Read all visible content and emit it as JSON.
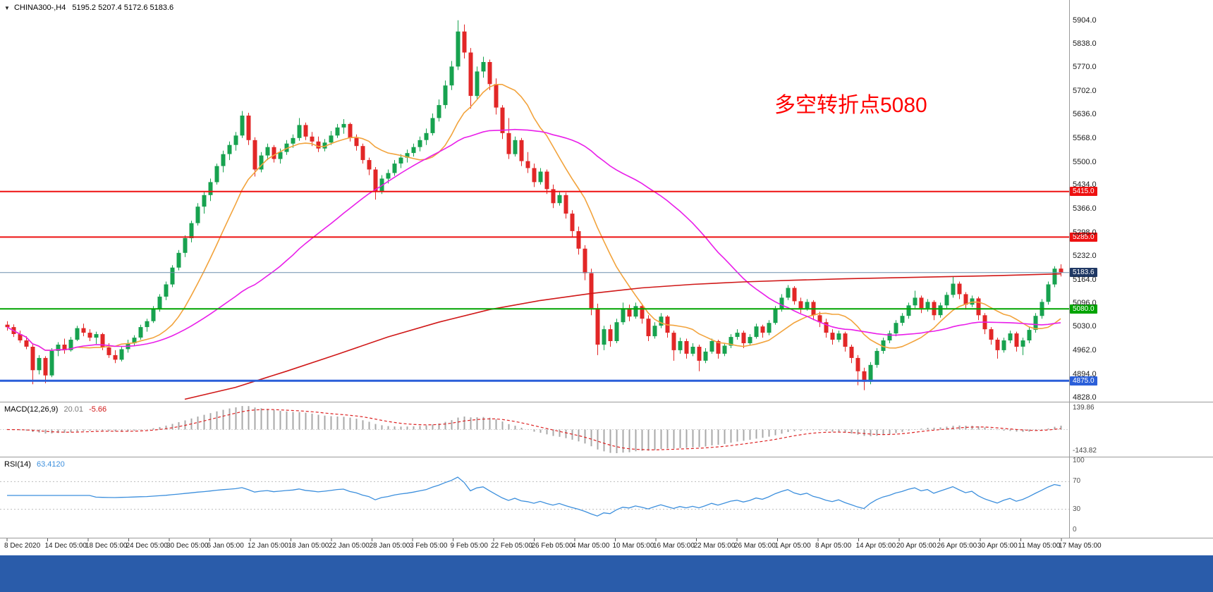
{
  "header": {
    "symbol": "CHINA300-,H4",
    "ohlc": "5195.2 5207.4 5172.6 5183.6"
  },
  "annotation": {
    "text": "多空转折点5080",
    "color": "#ff0000"
  },
  "taskbar": {
    "color": "#2a5caa"
  },
  "chart_data": {
    "type": "candlestick",
    "symbol": "CHINA300-",
    "timeframe": "H4",
    "current_bar": {
      "open": 5195.2,
      "high": 5207.4,
      "low": 5172.6,
      "close": 5183.6
    },
    "candle_up_color": "#17a24f",
    "candle_down_color": "#e22727",
    "price_axis": {
      "min": 4815,
      "max": 5962,
      "ticks": [
        5904,
        5838,
        5770,
        5702,
        5636,
        5568,
        5500,
        5434,
        5366,
        5298,
        5232,
        5164,
        5096,
        5030,
        4962,
        4894,
        4828
      ]
    },
    "x_labels": [
      "8 Dec 2020",
      "14 Dec 05:00",
      "18 Dec 05:00",
      "24 Dec 05:00",
      "30 Dec 05:00",
      "6 Jan 05:00",
      "12 Jan 05:00",
      "18 Jan 05:00",
      "22 Jan 05:00",
      "28 Jan 05:00",
      "3 Feb 05:00",
      "9 Feb 05:00",
      "22 Feb 05:00",
      "26 Feb 05:00",
      "4 Mar 05:00",
      "10 Mar 05:00",
      "16 Mar 05:00",
      "22 Mar 05:00",
      "26 Mar 05:00",
      "1 Apr 05:00",
      "8 Apr 05:00",
      "14 Apr 05:00",
      "20 Apr 05:00",
      "26 Apr 05:00",
      "30 Apr 05:00",
      "11 May 05:00",
      "17 May 05:00"
    ],
    "hlines": [
      {
        "price": 5415.0,
        "label": "5415.0",
        "color": "#ee1111",
        "width": 2
      },
      {
        "price": 5285.0,
        "label": "5285.0",
        "color": "#ee1111",
        "width": 2
      },
      {
        "price": 5080.0,
        "label": "5080.0",
        "color": "#00a400",
        "width": 2
      },
      {
        "price": 4875.0,
        "label": "4875.0",
        "color": "#2b5fd9",
        "width": 3
      }
    ],
    "current_price_line": {
      "price": 5183.6,
      "label": "5183.6",
      "color": "#6f8fae",
      "tag_bg": "#1f3864"
    },
    "moving_averages": [
      {
        "name": "ma-fast",
        "type": "sma",
        "period": 12,
        "color": "#f2a33c"
      },
      {
        "name": "ma-mid",
        "type": "sma",
        "period": 40,
        "color": "#e91ee9"
      },
      {
        "name": "ma-slow",
        "type": "manual",
        "color": "#d01818",
        "points": [
          [
            28,
            4822
          ],
          [
            36,
            4856
          ],
          [
            44,
            4902
          ],
          [
            52,
            4950
          ],
          [
            60,
            5000
          ],
          [
            68,
            5042
          ],
          [
            76,
            5078
          ],
          [
            84,
            5104
          ],
          [
            92,
            5124
          ],
          [
            100,
            5140
          ],
          [
            108,
            5150
          ],
          [
            116,
            5157
          ],
          [
            124,
            5162
          ],
          [
            132,
            5166
          ],
          [
            140,
            5169
          ],
          [
            148,
            5172
          ],
          [
            156,
            5175
          ],
          [
            162,
            5178
          ],
          [
            166,
            5180
          ]
        ]
      }
    ],
    "macd": {
      "label": "MACD(12,26,9)",
      "value_main": "20.01",
      "value_signal": "-5.66",
      "fast": 12,
      "slow": 26,
      "signal": 9,
      "axis_max": "139.86",
      "axis_min": "-143.82",
      "hist_color": "#a8a8a8",
      "signal_color": "#dd2222"
    },
    "rsi": {
      "label": "RSI(14)",
      "value": "63.4120",
      "period": 14,
      "levels": [
        100,
        70,
        30,
        0
      ],
      "color": "#3c8fdd"
    },
    "candles": [
      [
        5035,
        5045,
        5018,
        5028
      ],
      [
        5028,
        5036,
        5000,
        5008
      ],
      [
        5008,
        5018,
        4983,
        4990
      ],
      [
        4990,
        5002,
        4965,
        4972
      ],
      [
        4972,
        4980,
        4865,
        4905
      ],
      [
        4905,
        4948,
        4893,
        4940
      ],
      [
        4940,
        4945,
        4868,
        4890
      ],
      [
        4890,
        4968,
        4885,
        4960
      ],
      [
        4960,
        4985,
        4945,
        4978
      ],
      [
        4978,
        4995,
        4952,
        4962
      ],
      [
        4962,
        5000,
        4958,
        4992
      ],
      [
        4992,
        5032,
        4988,
        5025
      ],
      [
        5025,
        5038,
        5002,
        5012
      ],
      [
        5012,
        5022,
        4988,
        4998
      ],
      [
        4998,
        5015,
        4980,
        5008
      ],
      [
        5008,
        5012,
        4962,
        4970
      ],
      [
        4970,
        4982,
        4940,
        4948
      ],
      [
        4948,
        4962,
        4925,
        4935
      ],
      [
        4935,
        4972,
        4930,
        4965
      ],
      [
        4965,
        4992,
        4955,
        4982
      ],
      [
        4982,
        5005,
        4975,
        4998
      ],
      [
        4998,
        5035,
        4992,
        5028
      ],
      [
        5028,
        5052,
        5015,
        5045
      ],
      [
        5045,
        5088,
        5040,
        5080
      ],
      [
        5080,
        5122,
        5072,
        5115
      ],
      [
        5115,
        5158,
        5105,
        5150
      ],
      [
        5150,
        5205,
        5142,
        5198
      ],
      [
        5198,
        5248,
        5190,
        5240
      ],
      [
        5240,
        5290,
        5228,
        5282
      ],
      [
        5282,
        5332,
        5270,
        5325
      ],
      [
        5325,
        5382,
        5318,
        5372
      ],
      [
        5372,
        5415,
        5352,
        5405
      ],
      [
        5405,
        5452,
        5388,
        5442
      ],
      [
        5442,
        5495,
        5435,
        5488
      ],
      [
        5488,
        5532,
        5470,
        5522
      ],
      [
        5522,
        5558,
        5505,
        5548
      ],
      [
        5548,
        5585,
        5532,
        5575
      ],
      [
        5575,
        5645,
        5568,
        5632
      ],
      [
        5632,
        5640,
        5548,
        5562
      ],
      [
        5562,
        5570,
        5458,
        5478
      ],
      [
        5478,
        5528,
        5470,
        5518
      ],
      [
        5518,
        5552,
        5505,
        5542
      ],
      [
        5542,
        5548,
        5498,
        5508
      ],
      [
        5508,
        5538,
        5495,
        5528
      ],
      [
        5528,
        5562,
        5520,
        5552
      ],
      [
        5552,
        5578,
        5540,
        5568
      ],
      [
        5568,
        5625,
        5560,
        5605
      ],
      [
        5605,
        5612,
        5562,
        5572
      ],
      [
        5572,
        5585,
        5545,
        5558
      ],
      [
        5558,
        5572,
        5528,
        5538
      ],
      [
        5538,
        5565,
        5530,
        5555
      ],
      [
        5555,
        5588,
        5548,
        5575
      ],
      [
        5575,
        5608,
        5568,
        5598
      ],
      [
        5598,
        5622,
        5580,
        5608
      ],
      [
        5608,
        5612,
        5558,
        5568
      ],
      [
        5568,
        5578,
        5532,
        5545
      ],
      [
        5545,
        5552,
        5495,
        5505
      ],
      [
        5505,
        5512,
        5462,
        5478
      ],
      [
        5478,
        5485,
        5392,
        5415
      ],
      [
        5415,
        5462,
        5408,
        5452
      ],
      [
        5452,
        5478,
        5438,
        5468
      ],
      [
        5468,
        5505,
        5460,
        5495
      ],
      [
        5495,
        5522,
        5482,
        5512
      ],
      [
        5512,
        5535,
        5498,
        5525
      ],
      [
        5525,
        5552,
        5515,
        5542
      ],
      [
        5542,
        5572,
        5530,
        5562
      ],
      [
        5562,
        5595,
        5548,
        5582
      ],
      [
        5582,
        5638,
        5575,
        5625
      ],
      [
        5625,
        5678,
        5615,
        5662
      ],
      [
        5662,
        5732,
        5652,
        5718
      ],
      [
        5718,
        5788,
        5705,
        5772
      ],
      [
        5772,
        5904,
        5762,
        5872
      ],
      [
        5872,
        5892,
        5795,
        5812
      ],
      [
        5812,
        5825,
        5652,
        5688
      ],
      [
        5688,
        5772,
        5680,
        5758
      ],
      [
        5758,
        5800,
        5740,
        5785
      ],
      [
        5785,
        5792,
        5705,
        5722
      ],
      [
        5722,
        5738,
        5635,
        5655
      ],
      [
        5655,
        5662,
        5565,
        5582
      ],
      [
        5582,
        5625,
        5508,
        5522
      ],
      [
        5522,
        5572,
        5515,
        5562
      ],
      [
        5562,
        5568,
        5488,
        5502
      ],
      [
        5502,
        5528,
        5468,
        5482
      ],
      [
        5482,
        5495,
        5428,
        5442
      ],
      [
        5442,
        5482,
        5435,
        5472
      ],
      [
        5472,
        5478,
        5408,
        5422
      ],
      [
        5422,
        5435,
        5368,
        5382
      ],
      [
        5382,
        5415,
        5375,
        5405
      ],
      [
        5405,
        5412,
        5338,
        5352
      ],
      [
        5352,
        5362,
        5285,
        5302
      ],
      [
        5302,
        5315,
        5235,
        5252
      ],
      [
        5252,
        5262,
        5162,
        5182
      ],
      [
        5182,
        5195,
        5062,
        5082
      ],
      [
        5082,
        5095,
        4948,
        4978
      ],
      [
        4978,
        5032,
        4962,
        5022
      ],
      [
        5022,
        5035,
        4972,
        4988
      ],
      [
        4988,
        5052,
        4982,
        5042
      ],
      [
        5042,
        5098,
        5035,
        5082
      ],
      [
        5082,
        5092,
        5045,
        5058
      ],
      [
        5058,
        5098,
        5052,
        5088
      ],
      [
        5088,
        5095,
        5038,
        5052
      ],
      [
        5052,
        5062,
        4988,
        5002
      ],
      [
        5002,
        5042,
        4995,
        5032
      ],
      [
        5032,
        5068,
        5025,
        5058
      ],
      [
        5058,
        5062,
        4998,
        5012
      ],
      [
        5012,
        5018,
        4932,
        4962
      ],
      [
        4962,
        4998,
        4952,
        4988
      ],
      [
        4988,
        4995,
        4938,
        4952
      ],
      [
        4952,
        4982,
        4945,
        4972
      ],
      [
        4972,
        4978,
        4902,
        4932
      ],
      [
        4932,
        4968,
        4925,
        4958
      ],
      [
        4958,
        4995,
        4952,
        4988
      ],
      [
        4988,
        4992,
        4938,
        4952
      ],
      [
        4952,
        4982,
        4945,
        4975
      ],
      [
        4975,
        5008,
        4968,
        5000
      ],
      [
        5000,
        5022,
        4992,
        5012
      ],
      [
        5012,
        5018,
        4968,
        4982
      ],
      [
        4982,
        5008,
        4975,
        5000
      ],
      [
        5000,
        5038,
        4995,
        5030
      ],
      [
        5030,
        5035,
        4998,
        5012
      ],
      [
        5012,
        5048,
        5005,
        5040
      ],
      [
        5040,
        5088,
        5035,
        5080
      ],
      [
        5080,
        5122,
        5072,
        5112
      ],
      [
        5112,
        5148,
        5105,
        5140
      ],
      [
        5140,
        5145,
        5092,
        5102
      ],
      [
        5102,
        5112,
        5068,
        5082
      ],
      [
        5082,
        5108,
        5075,
        5100
      ],
      [
        5100,
        5105,
        5048,
        5062
      ],
      [
        5062,
        5072,
        5028,
        5042
      ],
      [
        5042,
        5052,
        4998,
        5012
      ],
      [
        5012,
        5022,
        4978,
        4992
      ],
      [
        4992,
        5018,
        4985,
        5010
      ],
      [
        5010,
        5015,
        4958,
        4972
      ],
      [
        4972,
        4978,
        4925,
        4940
      ],
      [
        4940,
        4948,
        4862,
        4902
      ],
      [
        4902,
        4912,
        4848,
        4872
      ],
      [
        4872,
        4928,
        4865,
        4920
      ],
      [
        4920,
        4968,
        4912,
        4960
      ],
      [
        4960,
        4998,
        4952,
        4990
      ],
      [
        4990,
        5018,
        4982,
        5010
      ],
      [
        5010,
        5048,
        5002,
        5040
      ],
      [
        5040,
        5068,
        5032,
        5060
      ],
      [
        5060,
        5098,
        5052,
        5090
      ],
      [
        5090,
        5132,
        5082,
        5112
      ],
      [
        5112,
        5118,
        5068,
        5082
      ],
      [
        5082,
        5108,
        5072,
        5100
      ],
      [
        5100,
        5105,
        5048,
        5062
      ],
      [
        5062,
        5098,
        5055,
        5090
      ],
      [
        5090,
        5128,
        5082,
        5120
      ],
      [
        5120,
        5172,
        5112,
        5152
      ],
      [
        5152,
        5158,
        5108,
        5122
      ],
      [
        5122,
        5128,
        5078,
        5092
      ],
      [
        5092,
        5118,
        5085,
        5110
      ],
      [
        5110,
        5115,
        5048,
        5062
      ],
      [
        5062,
        5068,
        5008,
        5022
      ],
      [
        5022,
        5028,
        4978,
        4992
      ],
      [
        4992,
        4998,
        4938,
        4962
      ],
      [
        4962,
        4998,
        4955,
        4990
      ],
      [
        4990,
        5018,
        4982,
        5010
      ],
      [
        5010,
        5015,
        4958,
        4972
      ],
      [
        4972,
        4998,
        4948,
        4990
      ],
      [
        4990,
        5028,
        4982,
        5020
      ],
      [
        5020,
        5068,
        5012,
        5060
      ],
      [
        5060,
        5108,
        5052,
        5100
      ],
      [
        5100,
        5158,
        5092,
        5150
      ],
      [
        5150,
        5202,
        5142,
        5195
      ],
      [
        5195.2,
        5207.4,
        5172.6,
        5183.6
      ]
    ]
  }
}
